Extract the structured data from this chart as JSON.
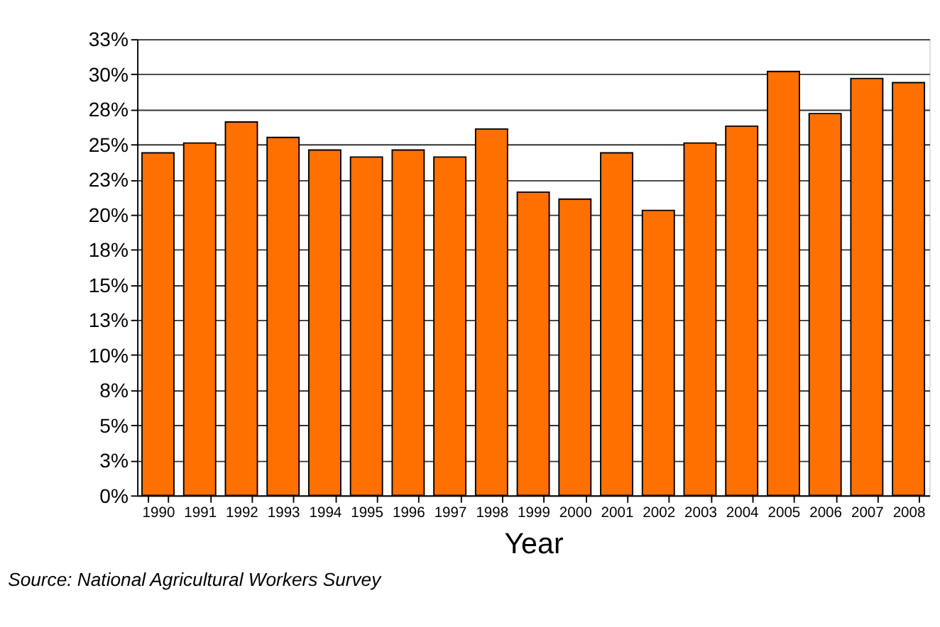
{
  "chart_data": {
    "type": "bar",
    "xlabel": "Year",
    "categories": [
      "1990",
      "1991",
      "1992",
      "1993",
      "1994",
      "1995",
      "1996",
      "1997",
      "1998",
      "1999",
      "2000",
      "2001",
      "2002",
      "2003",
      "2004",
      "2005",
      "2006",
      "2007",
      "2008"
    ],
    "values": [
      24.4,
      25.1,
      26.6,
      25.5,
      24.6,
      24.1,
      24.6,
      24.1,
      26.1,
      21.6,
      21.1,
      24.4,
      20.3,
      25.1,
      26.3,
      30.2,
      27.2,
      29.7,
      29.4
    ],
    "color": "#ff7000",
    "ylim": [
      0,
      32.5
    ],
    "yticks": [
      {
        "value": 0,
        "label": "0%"
      },
      {
        "value": 2.5,
        "label": "3%"
      },
      {
        "value": 5,
        "label": "5%"
      },
      {
        "value": 7.5,
        "label": "8%"
      },
      {
        "value": 10,
        "label": "10%"
      },
      {
        "value": 12.5,
        "label": "13%"
      },
      {
        "value": 15,
        "label": "15%"
      },
      {
        "value": 17.5,
        "label": "18%"
      },
      {
        "value": 20,
        "label": "20%"
      },
      {
        "value": 22.5,
        "label": "23%"
      },
      {
        "value": 25,
        "label": "25%"
      },
      {
        "value": 27.5,
        "label": "28%"
      },
      {
        "value": 30,
        "label": "30%"
      },
      {
        "value": 32.5,
        "label": "33%"
      }
    ],
    "grid": "y",
    "annotations": [
      "Source: National Agricultural Workers Survey"
    ]
  }
}
